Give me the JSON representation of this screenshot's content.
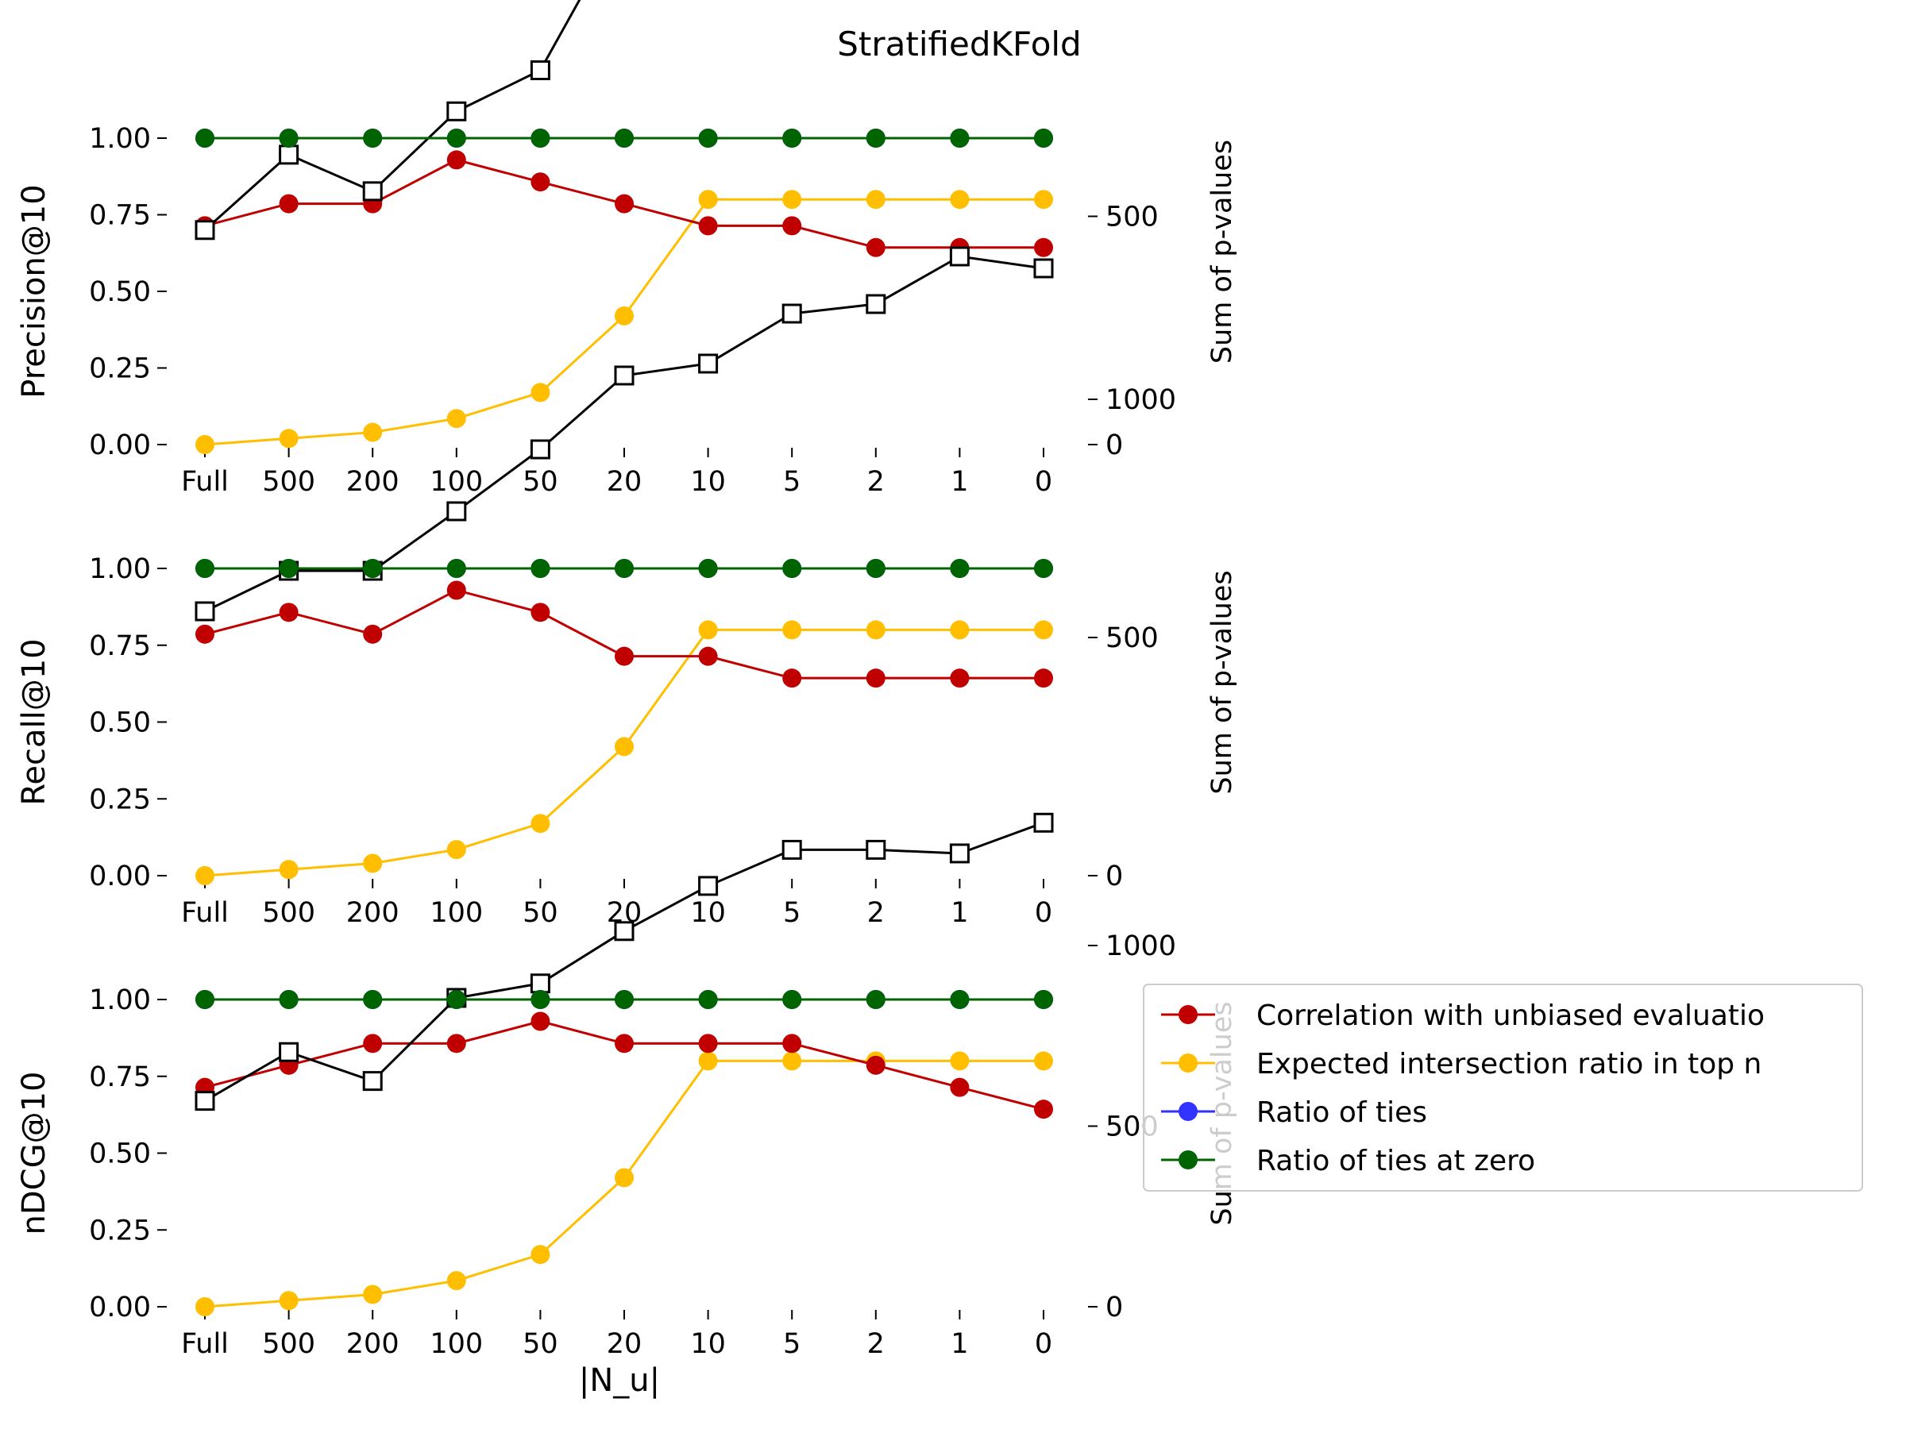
{
  "figure": {
    "title": "StratifiedKFold",
    "xlabel": "|N_u|"
  },
  "chart_data": [
    {
      "type": "line",
      "ylabel": "Precision@10",
      "y2label": "Sum of p-values",
      "categories": [
        "Full",
        "500",
        "200",
        "100",
        "50",
        "20",
        "10",
        "5",
        "2",
        "1",
        "0"
      ],
      "ylim": [
        0,
        1
      ],
      "yticks": [
        "0.00",
        "0.25",
        "0.50",
        "0.75",
        "1.00"
      ],
      "y2lim": [
        0,
        1300
      ],
      "y2ticks": [
        0,
        500,
        1000
      ],
      "series": [
        {
          "name": "Correlation with unbiased evaluatio",
          "color": "#c00000",
          "marker": "circle",
          "axis": "left",
          "values": [
            0.714,
            0.786,
            0.786,
            0.929,
            0.857,
            0.786,
            0.714,
            0.714,
            0.643,
            0.643,
            0.643
          ]
        },
        {
          "name": "Expected intersection ratio in top n",
          "color": "#ffbf00",
          "marker": "circle",
          "axis": "left",
          "values": [
            0.0,
            0.02,
            0.04,
            0.085,
            0.17,
            0.42,
            0.8,
            0.8,
            0.8,
            0.8,
            0.8
          ]
        },
        {
          "name": "Ratio of ties",
          "color": "#0000ff",
          "marker": "circle",
          "axis": "left",
          "values": [
            1,
            1,
            1,
            1,
            1,
            1,
            1,
            1,
            1,
            1,
            1
          ]
        },
        {
          "name": "Ratio of ties at zero",
          "color": "#006400",
          "marker": "circle",
          "axis": "left",
          "values": [
            1,
            1,
            1,
            1,
            1,
            1,
            1,
            1,
            1,
            1,
            1
          ]
        },
        {
          "name": "",
          "color": "#000000",
          "marker": "square",
          "axis": "right",
          "values": [
            470,
            635,
            555,
            730,
            820,
            1150,
            1135,
            1205,
            1190,
            1330,
            1235
          ]
        }
      ]
    },
    {
      "type": "line",
      "ylabel": "Recall@10",
      "y2label": "Sum of p-values",
      "categories": [
        "Full",
        "500",
        "200",
        "100",
        "50",
        "20",
        "10",
        "5",
        "2",
        "1",
        "0"
      ],
      "ylim": [
        0,
        1
      ],
      "yticks": [
        "0.00",
        "0.25",
        "0.50",
        "0.75",
        "1.00"
      ],
      "y2lim": [
        0,
        1300
      ],
      "y2ticks": [
        0,
        500,
        1000
      ],
      "series": [
        {
          "name": "Correlation with unbiased evaluatio",
          "color": "#c00000",
          "marker": "circle",
          "axis": "left",
          "values": [
            0.786,
            0.857,
            0.786,
            0.929,
            0.857,
            0.714,
            0.714,
            0.643,
            0.643,
            0.643,
            0.643
          ]
        },
        {
          "name": "Expected intersection ratio in top n",
          "color": "#ffbf00",
          "marker": "circle",
          "axis": "left",
          "values": [
            0.0,
            0.02,
            0.04,
            0.085,
            0.17,
            0.42,
            0.8,
            0.8,
            0.8,
            0.8,
            0.8
          ]
        },
        {
          "name": "Ratio of ties",
          "color": "#0000ff",
          "marker": "circle",
          "axis": "left",
          "values": [
            1,
            1,
            1,
            1,
            1,
            1,
            1,
            1,
            1,
            1,
            1
          ]
        },
        {
          "name": "Ratio of ties at zero",
          "color": "#006400",
          "marker": "circle",
          "axis": "left",
          "values": [
            1,
            1,
            1,
            1,
            1,
            1,
            1,
            1,
            1,
            1,
            1
          ]
        },
        {
          "name": "",
          "color": "#000000",
          "marker": "square",
          "axis": "right",
          "values": [
            555,
            640,
            640,
            765,
            895,
            1050,
            1075,
            1180,
            1200,
            1300,
            1275
          ]
        }
      ]
    },
    {
      "type": "line",
      "ylabel": "nDCG@10",
      "y2label": "Sum of p-values",
      "categories": [
        "Full",
        "500",
        "200",
        "100",
        "50",
        "20",
        "10",
        "5",
        "2",
        "1",
        "0"
      ],
      "ylim": [
        0,
        1
      ],
      "yticks": [
        "0.00",
        "0.25",
        "0.50",
        "0.75",
        "1.00"
      ],
      "y2lim": [
        0,
        1200
      ],
      "y2ticks": [
        0,
        500,
        1000
      ],
      "series": [
        {
          "name": "Correlation with unbiased evaluatio",
          "color": "#c00000",
          "marker": "circle",
          "axis": "left",
          "values": [
            0.714,
            0.786,
            0.857,
            0.857,
            0.929,
            0.857,
            0.857,
            0.857,
            0.786,
            0.714,
            0.643
          ]
        },
        {
          "name": "Expected intersection ratio in top n",
          "color": "#ffbf00",
          "marker": "circle",
          "axis": "left",
          "values": [
            0.0,
            0.02,
            0.04,
            0.085,
            0.17,
            0.42,
            0.8,
            0.8,
            0.8,
            0.8,
            0.8
          ]
        },
        {
          "name": "Ratio of ties",
          "color": "#0000ff",
          "marker": "circle",
          "axis": "left",
          "values": [
            1,
            1,
            1,
            1,
            1,
            1,
            1,
            1,
            1,
            1,
            1
          ]
        },
        {
          "name": "Ratio of ties at zero",
          "color": "#006400",
          "marker": "circle",
          "axis": "left",
          "values": [
            1,
            1,
            1,
            1,
            1,
            1,
            1,
            1,
            1,
            1,
            1
          ]
        },
        {
          "name": "",
          "color": "#000000",
          "marker": "square",
          "axis": "right",
          "values": [
            570,
            705,
            625,
            855,
            895,
            1040,
            1165,
            1265,
            1265,
            1255,
            1340
          ]
        }
      ]
    }
  ],
  "legend": {
    "location": "right of bottom panel",
    "items": [
      {
        "label": "Correlation with unbiased evaluatio",
        "color": "#c00000"
      },
      {
        "label": "Expected intersection ratio in top n",
        "color": "#ffbf00"
      },
      {
        "label": "Ratio of ties",
        "color": "#3333ff"
      },
      {
        "label": "Ratio of ties at zero",
        "color": "#006400"
      }
    ]
  }
}
